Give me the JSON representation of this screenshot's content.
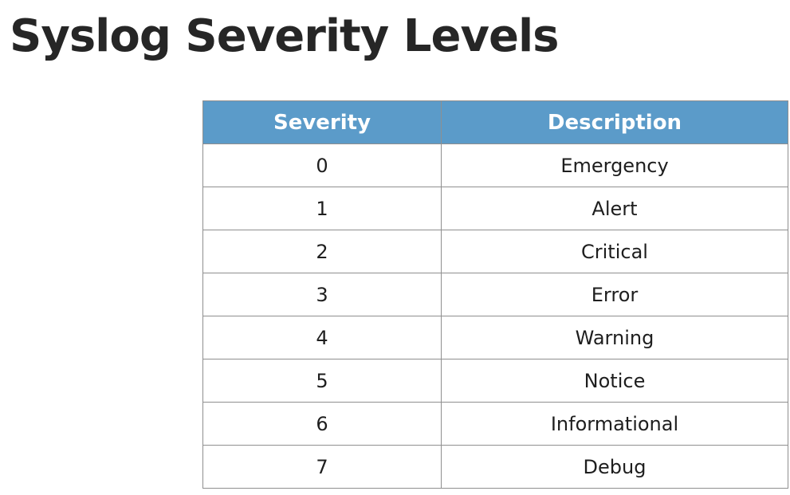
{
  "title": "Syslog Severity Levels",
  "table": {
    "headers": [
      "Severity",
      "Description"
    ],
    "rows": [
      [
        "0",
        "Emergency"
      ],
      [
        "1",
        "Alert"
      ],
      [
        "2",
        "Critical"
      ],
      [
        "3",
        "Error"
      ],
      [
        "4",
        "Warning"
      ],
      [
        "5",
        "Notice"
      ],
      [
        "6",
        "Informational"
      ],
      [
        "7",
        "Debug"
      ]
    ]
  },
  "colors": {
    "header_background": "#5b9bc9",
    "header_text": "#ffffff",
    "title_text": "#262626",
    "grid_lines": "#8f8f8f"
  }
}
